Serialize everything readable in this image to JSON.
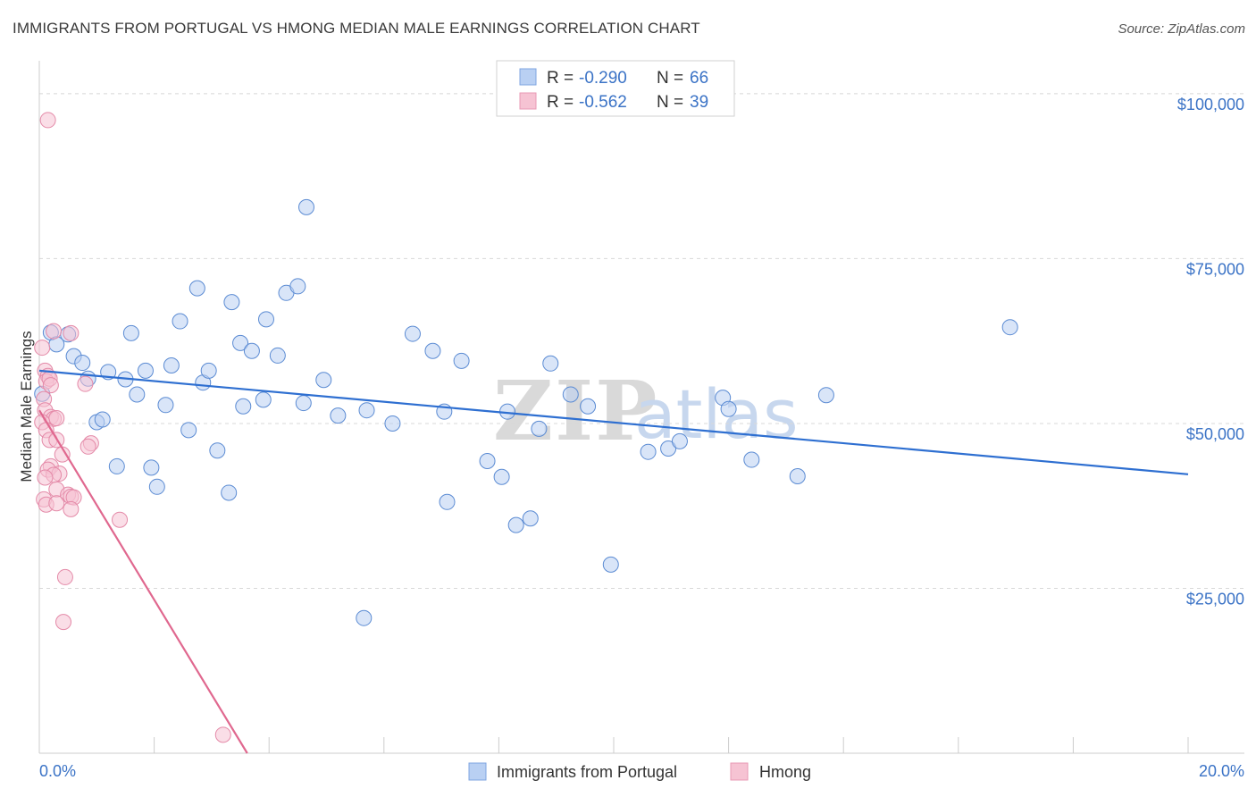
{
  "title": "IMMIGRANTS FROM PORTUGAL VS HMONG MEDIAN MALE EARNINGS CORRELATION CHART",
  "source": "Source: ZipAtlas.com",
  "watermark": {
    "part1": "ZIP",
    "part2": "atlas"
  },
  "colors": {
    "blue": "#3b73c6",
    "blue_fill": "#b9d0f3",
    "blue_line": "#2e6fd1",
    "pink_fill": "#f6c3d3",
    "pink_line": "#e0688f",
    "grid": "#d8d8d8"
  },
  "stats": [
    {
      "series": "Immigrants from Portugal",
      "r_label": "R = ",
      "r": "-0.290",
      "n_label": "N = ",
      "n": "66"
    },
    {
      "series": "Hmong",
      "r_label": "R = ",
      "r": "-0.562",
      "n_label": "N = ",
      "n": "39"
    }
  ],
  "chart_data": {
    "type": "scatter",
    "title": "IMMIGRANTS FROM PORTUGAL VS HMONG MEDIAN MALE EARNINGS CORRELATION CHART",
    "xlabel": "",
    "ylabel": "Median Male Earnings",
    "xlim": [
      0,
      20
    ],
    "ylim": [
      0,
      105000
    ],
    "x_tick_labels": {
      "min": "0.0%",
      "max": "20.0%"
    },
    "y_ticks": [
      {
        "value": 25000,
        "label": "$25,000"
      },
      {
        "value": 50000,
        "label": "$50,000"
      },
      {
        "value": 75000,
        "label": "$75,000"
      },
      {
        "value": 100000,
        "label": "$100,000"
      }
    ],
    "grid": true,
    "legend_position": "bottom-center",
    "series": [
      {
        "name": "Immigrants from Portugal",
        "color": "#3b73c6",
        "trend": {
          "x0": 0,
          "y0": 58000,
          "x1": 20,
          "y1": 42300
        },
        "points": [
          [
            0.2,
            63800
          ],
          [
            0.3,
            62000
          ],
          [
            0.5,
            63500
          ],
          [
            0.6,
            60200
          ],
          [
            0.75,
            59200
          ],
          [
            0.85,
            56800
          ],
          [
            1.0,
            50200
          ],
          [
            1.1,
            50600
          ],
          [
            1.2,
            57800
          ],
          [
            1.35,
            43500
          ],
          [
            1.5,
            56700
          ],
          [
            1.6,
            63700
          ],
          [
            1.7,
            54400
          ],
          [
            1.85,
            58000
          ],
          [
            1.95,
            43300
          ],
          [
            2.05,
            40400
          ],
          [
            2.2,
            52800
          ],
          [
            2.3,
            58800
          ],
          [
            2.45,
            65500
          ],
          [
            2.6,
            49000
          ],
          [
            2.75,
            70500
          ],
          [
            2.85,
            56200
          ],
          [
            2.95,
            58000
          ],
          [
            3.1,
            45900
          ],
          [
            3.3,
            39500
          ],
          [
            3.35,
            68400
          ],
          [
            3.5,
            62200
          ],
          [
            3.55,
            52600
          ],
          [
            3.7,
            61000
          ],
          [
            3.9,
            53600
          ],
          [
            3.95,
            65800
          ],
          [
            4.15,
            60300
          ],
          [
            4.3,
            69800
          ],
          [
            4.5,
            70800
          ],
          [
            4.6,
            53100
          ],
          [
            4.65,
            82800
          ],
          [
            4.95,
            56600
          ],
          [
            5.2,
            51200
          ],
          [
            5.65,
            20500
          ],
          [
            5.7,
            52000
          ],
          [
            6.15,
            50000
          ],
          [
            6.5,
            63600
          ],
          [
            6.85,
            61000
          ],
          [
            7.05,
            51800
          ],
          [
            7.1,
            38100
          ],
          [
            7.35,
            59500
          ],
          [
            7.8,
            44300
          ],
          [
            8.05,
            41900
          ],
          [
            8.15,
            51800
          ],
          [
            8.3,
            34600
          ],
          [
            8.55,
            35600
          ],
          [
            8.7,
            49200
          ],
          [
            8.9,
            59100
          ],
          [
            9.25,
            54400
          ],
          [
            9.55,
            52600
          ],
          [
            9.95,
            28600
          ],
          [
            10.6,
            45700
          ],
          [
            10.95,
            46200
          ],
          [
            11.15,
            47300
          ],
          [
            11.9,
            53900
          ],
          [
            12.0,
            52200
          ],
          [
            12.4,
            44500
          ],
          [
            13.2,
            42000
          ],
          [
            13.7,
            54300
          ],
          [
            16.9,
            64600
          ],
          [
            0.05,
            54500
          ]
        ]
      },
      {
        "name": "Hmong",
        "color": "#e0688f",
        "trend": {
          "x0": 0,
          "y0": 52000,
          "x1": 3.62,
          "y1": 0
        },
        "points": [
          [
            0.15,
            96000
          ],
          [
            0.25,
            64000
          ],
          [
            0.55,
            63700
          ],
          [
            0.05,
            61500
          ],
          [
            0.1,
            58000
          ],
          [
            0.15,
            57200
          ],
          [
            0.12,
            56400
          ],
          [
            0.18,
            56800
          ],
          [
            0.2,
            55800
          ],
          [
            0.8,
            56000
          ],
          [
            0.08,
            53700
          ],
          [
            0.1,
            52000
          ],
          [
            0.2,
            51000
          ],
          [
            0.25,
            50700
          ],
          [
            0.3,
            50800
          ],
          [
            0.05,
            50200
          ],
          [
            0.12,
            49000
          ],
          [
            0.18,
            47500
          ],
          [
            0.3,
            47500
          ],
          [
            0.9,
            47000
          ],
          [
            0.85,
            46500
          ],
          [
            0.4,
            45300
          ],
          [
            0.2,
            43500
          ],
          [
            0.15,
            43000
          ],
          [
            0.35,
            42400
          ],
          [
            0.25,
            42200
          ],
          [
            0.1,
            41800
          ],
          [
            0.3,
            40000
          ],
          [
            0.5,
            39200
          ],
          [
            0.55,
            38900
          ],
          [
            0.6,
            38800
          ],
          [
            0.08,
            38500
          ],
          [
            0.12,
            37700
          ],
          [
            0.3,
            37900
          ],
          [
            0.55,
            37000
          ],
          [
            1.4,
            35400
          ],
          [
            0.45,
            26700
          ],
          [
            0.42,
            19900
          ],
          [
            3.2,
            2800
          ]
        ]
      }
    ]
  }
}
